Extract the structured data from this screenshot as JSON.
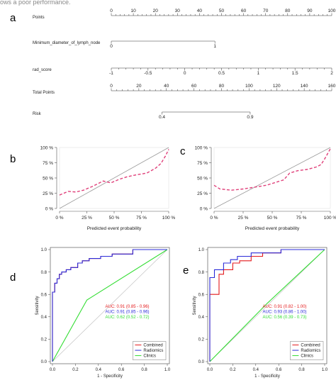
{
  "caption_top": "ows a poor performance.",
  "panels": {
    "a": "a",
    "b": "b",
    "c": "c",
    "d": "d",
    "e": "e"
  },
  "chart_data": [
    {
      "type": "nomogram",
      "rows": [
        {
          "label": "Points",
          "ticks": [
            "0",
            "10",
            "20",
            "30",
            "40",
            "50",
            "60",
            "70",
            "80",
            "90",
            "100"
          ],
          "range": [
            0,
            100
          ]
        },
        {
          "label": "Minimum_diameter_of_lymph_node",
          "ticks": [
            "0",
            "1"
          ],
          "range": [
            0,
            1
          ]
        },
        {
          "label": "rad_score",
          "ticks": [
            "-1",
            "-0.5",
            "0",
            "0.5",
            "1",
            "1.5",
            "2"
          ],
          "range": [
            -1,
            2
          ]
        },
        {
          "label": "Total Points",
          "ticks": [
            "0",
            "20",
            "40",
            "60",
            "80",
            "100",
            "120",
            "140",
            "160"
          ],
          "range": [
            0,
            160
          ]
        },
        {
          "label": "Risk",
          "ticks": [
            "0.4",
            "0.9"
          ],
          "range": [
            0.4,
            0.9
          ]
        }
      ]
    },
    {
      "type": "line",
      "panel": "b",
      "xlabel": "Predicted event probability",
      "x_ticks": [
        "0 %",
        "25 %",
        "50 %",
        "75 %",
        "100 %"
      ],
      "y_ticks": [
        "0 %",
        "25 %",
        "50 %",
        "75 %",
        "100 %"
      ],
      "xlim": [
        0,
        100
      ],
      "ylim": [
        0,
        100
      ],
      "series": [
        {
          "values_x": [
            0,
            100
          ],
          "values_y": [
            0,
            100
          ],
          "color": "#999999",
          "style": "solid"
        },
        {
          "values_x": [
            0,
            8,
            15,
            22,
            30,
            40,
            47,
            55,
            62,
            70,
            80,
            88,
            93,
            97,
            100
          ],
          "values_y": [
            22,
            28,
            27,
            30,
            36,
            45,
            42,
            48,
            52,
            55,
            58,
            66,
            74,
            86,
            97
          ],
          "color": "#e0407a",
          "style": "dashed"
        }
      ]
    },
    {
      "type": "line",
      "panel": "c",
      "xlabel": "Predicted event probability",
      "x_ticks": [
        "0 %",
        "25 %",
        "50 %",
        "75 %",
        "100 %"
      ],
      "y_ticks": [
        "0 %",
        "25 %",
        "50 %",
        "75 %",
        "100 %"
      ],
      "xlim": [
        0,
        100
      ],
      "ylim": [
        0,
        100
      ],
      "series": [
        {
          "values_x": [
            0,
            100
          ],
          "values_y": [
            0,
            100
          ],
          "color": "#999999",
          "style": "solid"
        },
        {
          "values_x": [
            0,
            5,
            15,
            25,
            35,
            45,
            55,
            60,
            65,
            72,
            80,
            88,
            92,
            96,
            100
          ],
          "values_y": [
            38,
            32,
            30,
            32,
            35,
            38,
            44,
            47,
            58,
            62,
            64,
            68,
            72,
            84,
            98
          ],
          "color": "#e0407a",
          "style": "dashed"
        }
      ]
    },
    {
      "type": "line",
      "panel": "d",
      "xlabel": "1 - Specificity",
      "ylabel": "Sensitivity",
      "x_ticks": [
        "0.0",
        "0.2",
        "0.4",
        "0.6",
        "0.8",
        "1.0"
      ],
      "y_ticks": [
        "0.0",
        "0.2",
        "0.4",
        "0.6",
        "0.8",
        "1.0"
      ],
      "xlim": [
        0,
        1
      ],
      "ylim": [
        0,
        1
      ],
      "legend": [
        "Combined",
        "Radiomics",
        "Clinics"
      ],
      "auc_labels": [
        "AUC: 0.91 (0.85 - 0.96)",
        "AUC: 0.91 (0.85 - 0.96)",
        "AUC: 0.62 (0.52 - 0.72)"
      ],
      "series": [
        {
          "name": "Combined",
          "color": "#e41a1c",
          "x": [
            0,
            0,
            0.02,
            0.02,
            0.04,
            0.04,
            0.06,
            0.06,
            0.08,
            0.08,
            0.12,
            0.12,
            0.16,
            0.16,
            0.22,
            0.22,
            0.26,
            0.26,
            0.32,
            0.32,
            0.42,
            0.42,
            0.52,
            0.52,
            0.7,
            0.7,
            1.0
          ],
          "y": [
            0,
            0.62,
            0.62,
            0.7,
            0.7,
            0.74,
            0.74,
            0.78,
            0.78,
            0.8,
            0.8,
            0.82,
            0.82,
            0.84,
            0.84,
            0.88,
            0.88,
            0.9,
            0.9,
            0.92,
            0.92,
            0.94,
            0.94,
            0.96,
            0.96,
            1.0,
            1.0
          ]
        },
        {
          "name": "Radiomics",
          "color": "#2b2bd8",
          "x": [
            0,
            0,
            0.02,
            0.02,
            0.04,
            0.04,
            0.06,
            0.06,
            0.08,
            0.08,
            0.12,
            0.12,
            0.16,
            0.16,
            0.22,
            0.22,
            0.26,
            0.26,
            0.32,
            0.32,
            0.42,
            0.42,
            0.52,
            0.52,
            0.7,
            0.7,
            1.0
          ],
          "y": [
            0,
            0.62,
            0.62,
            0.7,
            0.7,
            0.74,
            0.74,
            0.78,
            0.78,
            0.8,
            0.8,
            0.82,
            0.82,
            0.84,
            0.84,
            0.88,
            0.88,
            0.9,
            0.9,
            0.92,
            0.92,
            0.94,
            0.94,
            0.96,
            0.96,
            1.0,
            1.0
          ]
        },
        {
          "name": "Clinics",
          "color": "#33dd33",
          "x": [
            0,
            0.3,
            1.0
          ],
          "y": [
            0,
            0.55,
            1.0
          ]
        },
        {
          "name": "",
          "color": "#bbbbbb",
          "x": [
            0,
            1
          ],
          "y": [
            0,
            1
          ]
        }
      ]
    },
    {
      "type": "line",
      "panel": "e",
      "xlabel": "1 - Specificity",
      "ylabel": "Sensitivity",
      "x_ticks": [
        "0.0",
        "0.2",
        "0.4",
        "0.6",
        "0.8",
        "1.0"
      ],
      "y_ticks": [
        "0.0",
        "0.2",
        "0.4",
        "0.6",
        "0.8",
        "1.0"
      ],
      "xlim": [
        0,
        1
      ],
      "ylim": [
        0,
        1
      ],
      "legend": [
        "Combined",
        "Radiomics",
        "Clinics"
      ],
      "auc_labels": [
        "AUC: 0.91 (0.82 - 1.00)",
        "AUC: 0.93 (0.86 - 1.00)",
        "AUC: 0.56 (0.39 - 0.73)"
      ],
      "series": [
        {
          "name": "Combined",
          "color": "#e41a1c",
          "x": [
            0,
            0,
            0.08,
            0.08,
            0.12,
            0.12,
            0.2,
            0.2,
            0.26,
            0.26,
            0.36,
            0.36,
            0.46,
            0.46,
            0.62,
            0.62,
            1.0
          ],
          "y": [
            0,
            0.6,
            0.6,
            0.78,
            0.78,
            0.82,
            0.82,
            0.88,
            0.88,
            0.9,
            0.9,
            0.94,
            0.94,
            0.97,
            0.97,
            1.0,
            1.0
          ]
        },
        {
          "name": "Radiomics",
          "color": "#2b2bd8",
          "x": [
            0,
            0,
            0.04,
            0.04,
            0.12,
            0.12,
            0.18,
            0.18,
            0.24,
            0.24,
            0.36,
            0.36,
            0.46,
            0.46,
            0.62,
            0.62,
            1.0
          ],
          "y": [
            0,
            0.75,
            0.75,
            0.82,
            0.82,
            0.88,
            0.88,
            0.91,
            0.91,
            0.94,
            0.94,
            0.97,
            0.97,
            0.97,
            0.97,
            1.0,
            1.0
          ]
        },
        {
          "name": "Clinics",
          "color": "#33dd33",
          "x": [
            0,
            0.5,
            1.0
          ],
          "y": [
            0,
            0.52,
            1.0
          ]
        },
        {
          "name": "",
          "color": "#bbbbbb",
          "x": [
            0,
            1
          ],
          "y": [
            0,
            1
          ]
        }
      ]
    }
  ]
}
